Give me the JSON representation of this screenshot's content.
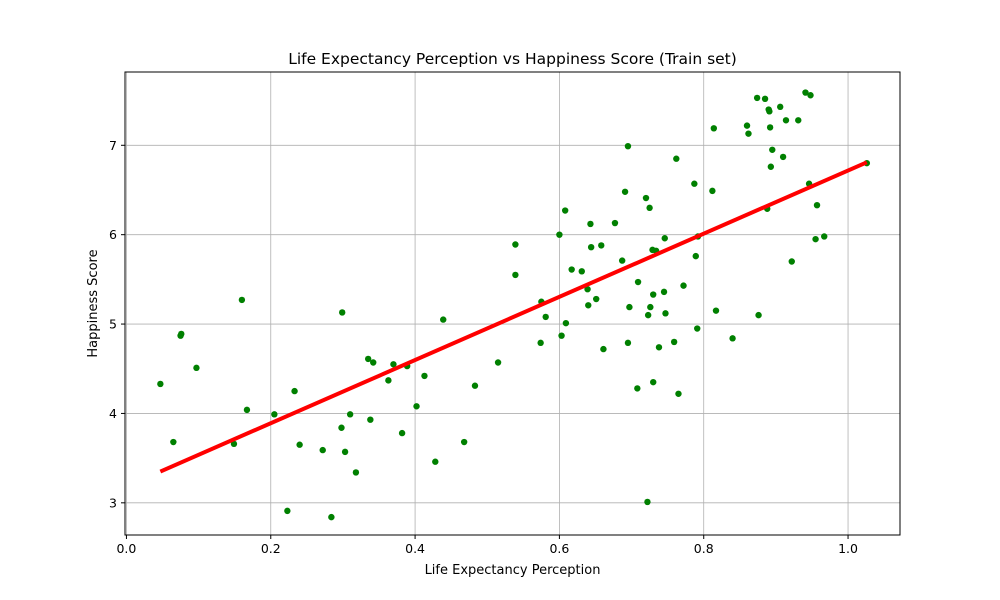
{
  "chart_data": {
    "type": "scatter",
    "title": "Life Expectancy Perception vs Happiness Score (Train set)",
    "xlabel": "Life Expectancy Perception",
    "ylabel": "Happiness Score",
    "xlim": [
      -0.002,
      1.072
    ],
    "ylim": [
      2.64,
      7.82
    ],
    "xticks": [
      0.0,
      0.2,
      0.4,
      0.6,
      0.8,
      1.0
    ],
    "xtick_labels": [
      "0.0",
      "0.2",
      "0.4",
      "0.6",
      "0.8",
      "1.0"
    ],
    "yticks": [
      3,
      4,
      5,
      6,
      7
    ],
    "ytick_labels": [
      "3",
      "4",
      "5",
      "6",
      "7"
    ],
    "grid": true,
    "colors": {
      "points": "#008000",
      "fit_line": "#ff0000",
      "grid": "#b0b0b0"
    },
    "series": [
      {
        "type": "scatter",
        "points": [
          [
            0.047,
            4.33
          ],
          [
            0.065,
            3.68
          ],
          [
            0.075,
            4.87
          ],
          [
            0.076,
            4.89
          ],
          [
            0.097,
            4.51
          ],
          [
            0.149,
            3.66
          ],
          [
            0.16,
            5.27
          ],
          [
            0.167,
            4.04
          ],
          [
            0.205,
            3.99
          ],
          [
            0.223,
            2.91
          ],
          [
            0.233,
            4.25
          ],
          [
            0.24,
            3.65
          ],
          [
            0.272,
            3.59
          ],
          [
            0.284,
            2.84
          ],
          [
            0.298,
            3.84
          ],
          [
            0.299,
            5.13
          ],
          [
            0.303,
            3.57
          ],
          [
            0.31,
            3.99
          ],
          [
            0.318,
            3.34
          ],
          [
            0.335,
            4.61
          ],
          [
            0.338,
            3.93
          ],
          [
            0.342,
            4.57
          ],
          [
            0.363,
            4.37
          ],
          [
            0.37,
            4.55
          ],
          [
            0.382,
            3.78
          ],
          [
            0.389,
            4.53
          ],
          [
            0.402,
            4.08
          ],
          [
            0.413,
            4.42
          ],
          [
            0.428,
            3.46
          ],
          [
            0.439,
            5.05
          ],
          [
            0.468,
            3.68
          ],
          [
            0.483,
            4.31
          ],
          [
            0.515,
            4.57
          ],
          [
            0.539,
            5.55
          ],
          [
            0.539,
            5.89
          ],
          [
            0.574,
            4.79
          ],
          [
            0.575,
            5.25
          ],
          [
            0.581,
            5.08
          ],
          [
            0.6,
            6.0
          ],
          [
            0.603,
            4.87
          ],
          [
            0.608,
            6.27
          ],
          [
            0.609,
            5.01
          ],
          [
            0.617,
            5.61
          ],
          [
            0.631,
            5.59
          ],
          [
            0.639,
            5.39
          ],
          [
            0.64,
            5.21
          ],
          [
            0.643,
            6.12
          ],
          [
            0.644,
            5.86
          ],
          [
            0.651,
            5.28
          ],
          [
            0.658,
            5.88
          ],
          [
            0.661,
            4.72
          ],
          [
            0.677,
            6.13
          ],
          [
            0.687,
            5.71
          ],
          [
            0.691,
            6.48
          ],
          [
            0.695,
            6.99
          ],
          [
            0.695,
            4.79
          ],
          [
            0.697,
            5.19
          ],
          [
            0.708,
            4.28
          ],
          [
            0.709,
            5.47
          ],
          [
            0.72,
            6.41
          ],
          [
            0.722,
            3.01
          ],
          [
            0.723,
            5.1
          ],
          [
            0.725,
            6.3
          ],
          [
            0.726,
            5.19
          ],
          [
            0.729,
            5.83
          ],
          [
            0.73,
            4.35
          ],
          [
            0.73,
            5.33
          ],
          [
            0.734,
            5.82
          ],
          [
            0.738,
            4.74
          ],
          [
            0.745,
            5.36
          ],
          [
            0.746,
            5.96
          ],
          [
            0.747,
            5.12
          ],
          [
            0.759,
            4.8
          ],
          [
            0.762,
            6.85
          ],
          [
            0.765,
            4.22
          ],
          [
            0.772,
            5.43
          ],
          [
            0.787,
            6.57
          ],
          [
            0.789,
            5.76
          ],
          [
            0.791,
            4.95
          ],
          [
            0.792,
            5.98
          ],
          [
            0.812,
            6.49
          ],
          [
            0.814,
            7.19
          ],
          [
            0.817,
            5.15
          ],
          [
            0.84,
            4.84
          ],
          [
            0.86,
            7.22
          ],
          [
            0.862,
            7.13
          ],
          [
            0.874,
            7.53
          ],
          [
            0.876,
            5.1
          ],
          [
            0.885,
            7.52
          ],
          [
            0.888,
            6.29
          ],
          [
            0.89,
            7.4
          ],
          [
            0.891,
            7.38
          ],
          [
            0.892,
            7.2
          ],
          [
            0.893,
            6.76
          ],
          [
            0.895,
            6.95
          ],
          [
            0.906,
            7.43
          ],
          [
            0.91,
            6.87
          ],
          [
            0.914,
            7.28
          ],
          [
            0.922,
            5.7
          ],
          [
            0.931,
            7.28
          ],
          [
            0.941,
            7.59
          ],
          [
            0.946,
            6.57
          ],
          [
            0.948,
            7.56
          ],
          [
            0.955,
            5.95
          ],
          [
            0.957,
            6.33
          ],
          [
            0.967,
            5.98
          ],
          [
            1.026,
            6.8
          ]
        ]
      },
      {
        "type": "line",
        "points": [
          [
            0.047,
            3.35
          ],
          [
            1.026,
            6.81
          ]
        ]
      }
    ]
  }
}
